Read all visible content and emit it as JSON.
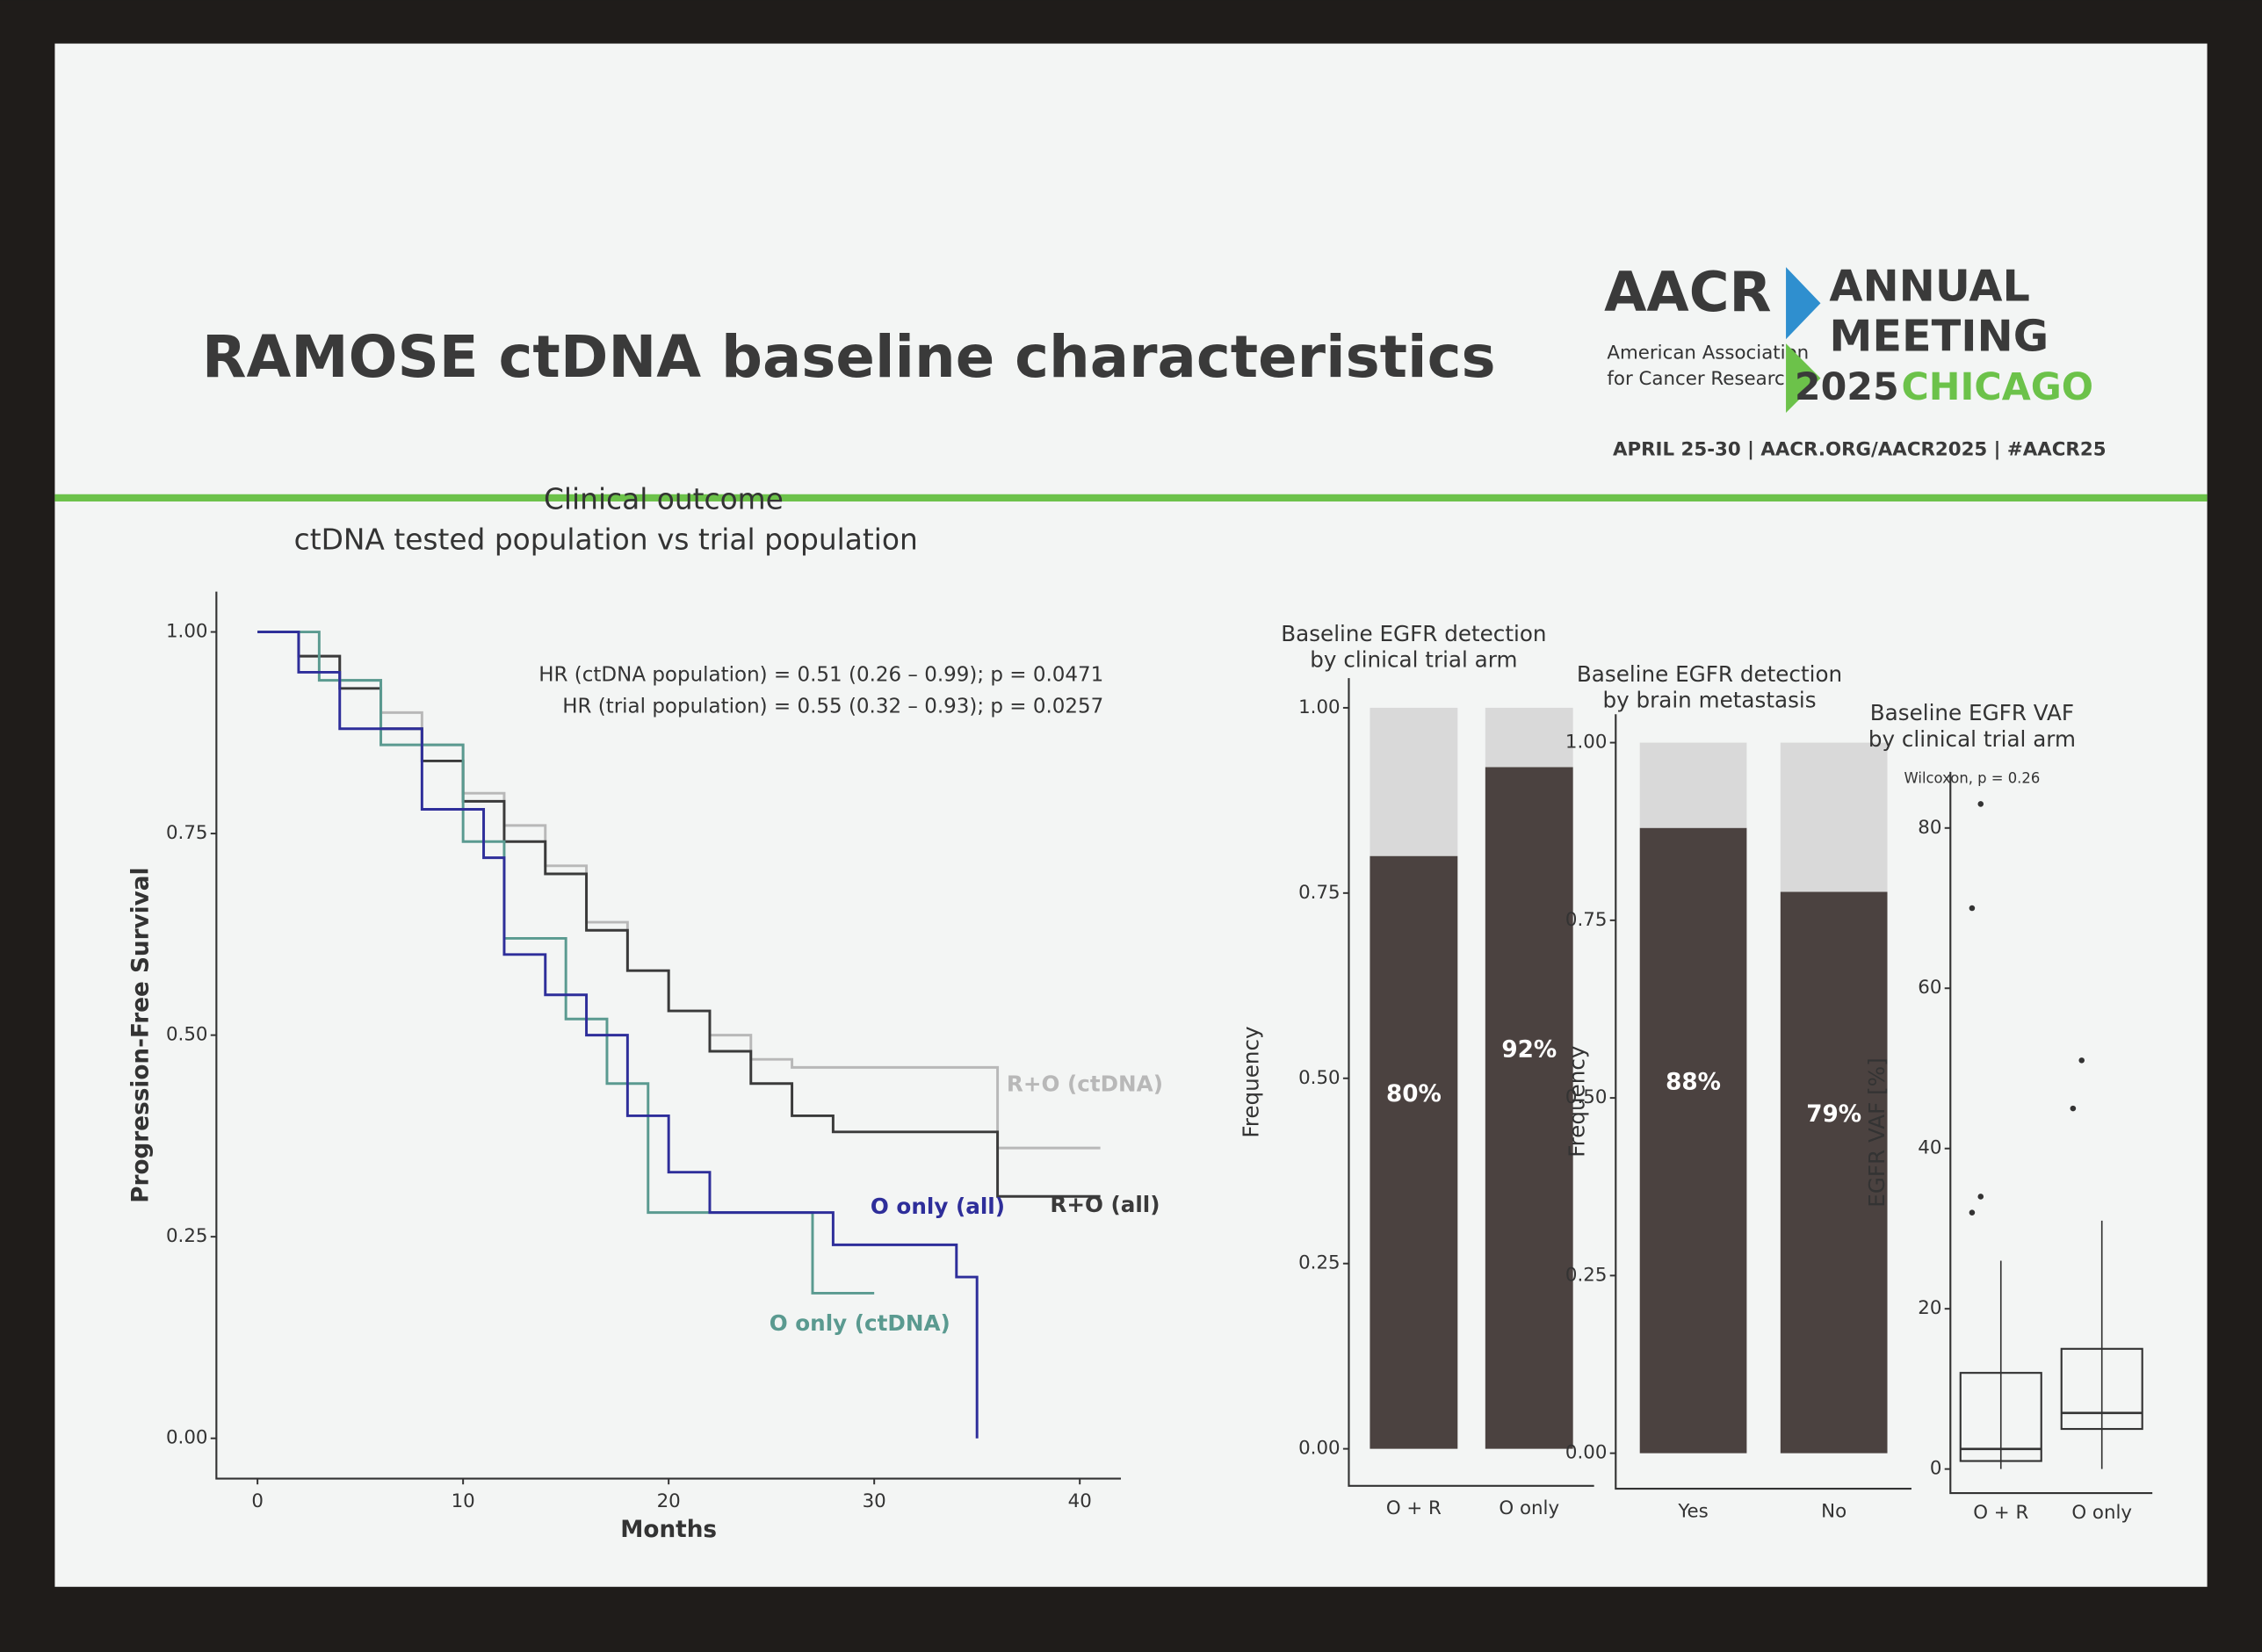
{
  "slide": {
    "title": "RAMOSE ctDNA baseline characteristics",
    "logo": {
      "org": "AACR",
      "org_line_1": "American Association",
      "org_line_2": "for Cancer Research",
      "event_line_1": "ANNUAL",
      "event_line_2": "MEETING",
      "year": "2025",
      "city": "CHICAGO",
      "details": "APRIL 25-30  |  AACR.ORG/AACR2025  |  #AACR25"
    }
  },
  "chart_data": [
    {
      "type": "line",
      "step": true,
      "title": "Clinical outcome",
      "subtitle": "ctDNA tested population vs trial population",
      "x_label": "Months",
      "y_label": "Progression-Free Survival",
      "annotations": [
        "HR (ctDNA population) = 0.51 (0.26 – 0.99); p = 0.0471",
        "HR (trial population) = 0.55 (0.32 – 0.93); p = 0.0257"
      ],
      "xlim": [
        -2,
        42
      ],
      "xticks": [
        0,
        10,
        20,
        30,
        40
      ],
      "ylim": [
        -0.05,
        1.05
      ],
      "yticks": [
        {
          "value": 0,
          "label": "0.00"
        },
        {
          "value": 0.25,
          "label": "0.25"
        },
        {
          "value": 0.5,
          "label": "0.50"
        },
        {
          "value": 0.75,
          "label": "0.75"
        },
        {
          "value": 1,
          "label": "1.00"
        }
      ],
      "series": [
        {
          "name": "R+O (ctDNA)",
          "color": "#b8b8b8",
          "x": [
            0,
            2,
            4,
            6,
            8,
            10,
            12,
            14,
            16,
            18,
            20,
            22,
            24,
            26,
            36,
            41
          ],
          "values": [
            1,
            0.97,
            0.94,
            0.9,
            0.86,
            0.8,
            0.76,
            0.71,
            0.64,
            0.58,
            0.53,
            0.5,
            0.47,
            0.46,
            0.36,
            0.36
          ]
        },
        {
          "name": "R+O (all)",
          "color": "#3a3a3a",
          "x": [
            0,
            2,
            4,
            6,
            8,
            10,
            12,
            14,
            16,
            18,
            20,
            22,
            24,
            26,
            28,
            36,
            41
          ],
          "values": [
            1,
            0.97,
            0.93,
            0.88,
            0.84,
            0.79,
            0.74,
            0.7,
            0.63,
            0.58,
            0.53,
            0.48,
            0.44,
            0.4,
            0.38,
            0.3,
            0.3
          ]
        },
        {
          "name": "O only (ctDNA)",
          "color": "#5a9a90",
          "x": [
            0,
            3,
            6,
            10,
            12,
            15,
            17,
            19,
            27,
            30
          ],
          "values": [
            1,
            0.94,
            0.86,
            0.74,
            0.62,
            0.52,
            0.44,
            0.28,
            0.18,
            0.18
          ]
        },
        {
          "name": "O only (all)",
          "color": "#2e2e9a",
          "x": [
            0,
            2,
            4,
            8,
            11,
            12,
            14,
            16,
            18,
            20,
            22,
            28,
            34,
            35
          ],
          "values": [
            1,
            0.95,
            0.88,
            0.78,
            0.72,
            0.6,
            0.55,
            0.5,
            0.4,
            0.33,
            0.28,
            0.24,
            0.2,
            0
          ]
        }
      ]
    },
    {
      "type": "bar",
      "stacked": true,
      "title": [
        "Baseline EGFR detection",
        "by clinical trial arm"
      ],
      "y_label": "Frequency",
      "categories": [
        "O + R",
        "O only"
      ],
      "ylim": [
        -0.05,
        1.04
      ],
      "yticks": [
        {
          "value": 0,
          "label": "0.00"
        },
        {
          "value": 0.25,
          "label": "0.25"
        },
        {
          "value": 0.5,
          "label": "0.50"
        },
        {
          "value": 0.75,
          "label": "0.75"
        },
        {
          "value": 1,
          "label": "1.00"
        }
      ],
      "series": [
        {
          "color": "#4b4240",
          "values": [
            0.8,
            0.92
          ],
          "value_labels": [
            "80%",
            "92%"
          ]
        },
        {
          "color": "#d9d9d9",
          "values": [
            0.2,
            0.08
          ]
        }
      ]
    },
    {
      "type": "bar",
      "stacked": true,
      "title": [
        "Baseline EGFR detection",
        "by brain metastasis"
      ],
      "y_label": "Frequency",
      "categories": [
        "Yes",
        "No"
      ],
      "ylim": [
        -0.05,
        1.04
      ],
      "yticks": [
        {
          "value": 0,
          "label": "0.00"
        },
        {
          "value": 0.25,
          "label": "0.25"
        },
        {
          "value": 0.5,
          "label": "0.50"
        },
        {
          "value": 0.75,
          "label": "0.75"
        },
        {
          "value": 1,
          "label": "1.00"
        }
      ],
      "series": [
        {
          "color": "#4b4240",
          "values": [
            0.88,
            0.79
          ],
          "value_labels": [
            "88%",
            "79%"
          ]
        },
        {
          "color": "#d9d9d9",
          "values": [
            0.12,
            0.21
          ]
        }
      ]
    },
    {
      "type": "box",
      "title": [
        "Baseline EGFR VAF",
        "by clinical trial arm"
      ],
      "annotation": "Wilcoxon, p = 0.26",
      "y_label": "EGFR VAF [%]",
      "categories": [
        "O + R",
        "O only"
      ],
      "ylim": [
        -3,
        87
      ],
      "yticks": [
        0,
        20,
        40,
        60,
        80
      ],
      "boxes": [
        {
          "min": 0,
          "q1": 1,
          "median": 2.5,
          "q3": 12,
          "max": 26,
          "outliers": [
            32,
            34,
            70,
            83
          ]
        },
        {
          "min": 0,
          "q1": 5,
          "median": 7,
          "q3": 15,
          "max": 31,
          "outliers": [
            45,
            51
          ]
        }
      ]
    }
  ]
}
